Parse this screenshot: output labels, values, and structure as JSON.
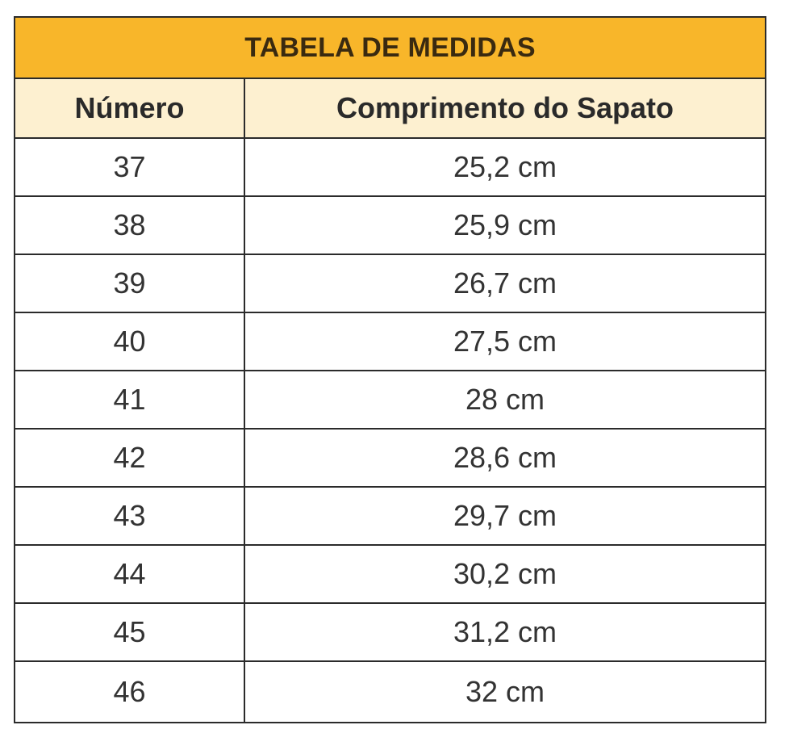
{
  "table": {
    "title": "TABELA DE MEDIDAS",
    "headers": [
      "Número",
      "Comprimento do Sapato"
    ],
    "rows": [
      [
        "37",
        "25,2 cm"
      ],
      [
        "38",
        "25,9 cm"
      ],
      [
        "39",
        "26,7 cm"
      ],
      [
        "40",
        "27,5 cm"
      ],
      [
        "41",
        "28 cm"
      ],
      [
        "42",
        "28,6 cm"
      ],
      [
        "43",
        "29,7 cm"
      ],
      [
        "44",
        "30,2 cm"
      ],
      [
        "45",
        "31,2 cm"
      ],
      [
        "46",
        "32 cm"
      ]
    ]
  },
  "colors": {
    "title_background": "#f8b62a",
    "header_background": "#fdf0d0",
    "border": "#2b2b2b"
  }
}
